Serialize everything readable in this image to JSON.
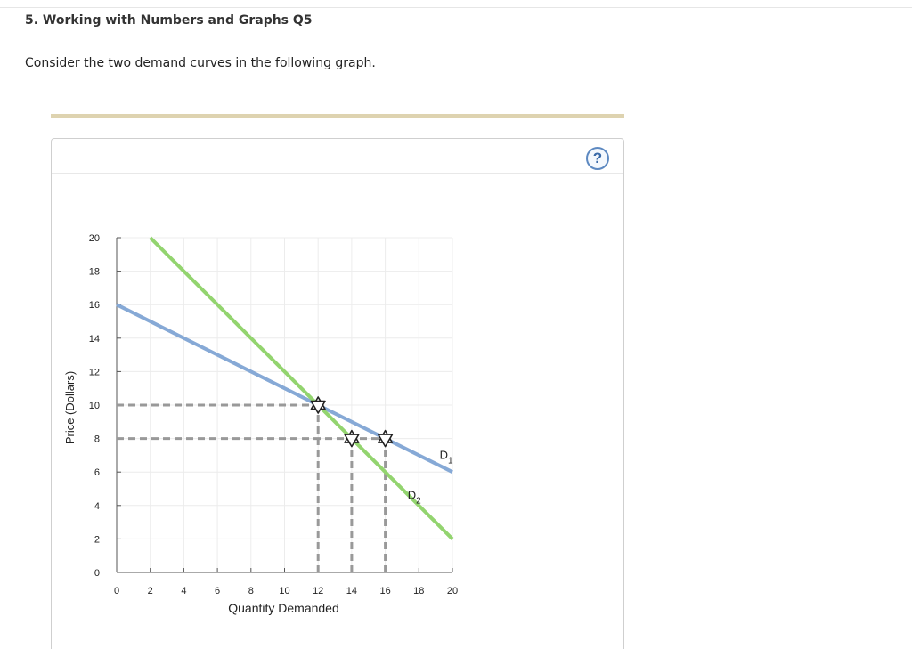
{
  "question": {
    "title": "5. Working with Numbers and Graphs Q5",
    "prompt": "Consider the two demand curves in the following graph."
  },
  "help_button": {
    "label": "?"
  },
  "chart_data": {
    "type": "line",
    "title": "",
    "xlabel": "Quantity Demanded",
    "ylabel": "Price (Dollars)",
    "xlim": [
      0,
      20
    ],
    "ylim": [
      0,
      20
    ],
    "x_ticks": [
      0,
      2,
      4,
      6,
      8,
      10,
      12,
      14,
      16,
      18,
      20
    ],
    "y_ticks": [
      0,
      2,
      4,
      6,
      8,
      10,
      12,
      14,
      16,
      18,
      20
    ],
    "grid": true,
    "series": [
      {
        "name": "D1",
        "label_main": "D",
        "label_sub": "1",
        "color": "#86a9d6",
        "points": [
          [
            0,
            16
          ],
          [
            20,
            6
          ]
        ]
      },
      {
        "name": "D2",
        "label_main": "D",
        "label_sub": "2",
        "color": "#93d46f",
        "points": [
          [
            2,
            20
          ],
          [
            20,
            2
          ]
        ]
      }
    ],
    "markers": [
      {
        "x": 12,
        "y": 10
      },
      {
        "x": 14,
        "y": 8
      },
      {
        "x": 16,
        "y": 8
      }
    ],
    "dashed_guides": [
      {
        "from": [
          0,
          10
        ],
        "to": [
          12,
          10
        ]
      },
      {
        "from": [
          0,
          8
        ],
        "to": [
          16,
          8
        ]
      },
      {
        "from": [
          12,
          0
        ],
        "to": [
          12,
          10
        ]
      },
      {
        "from": [
          14,
          0
        ],
        "to": [
          14,
          8
        ]
      },
      {
        "from": [
          16,
          0
        ],
        "to": [
          16,
          8
        ]
      }
    ]
  }
}
